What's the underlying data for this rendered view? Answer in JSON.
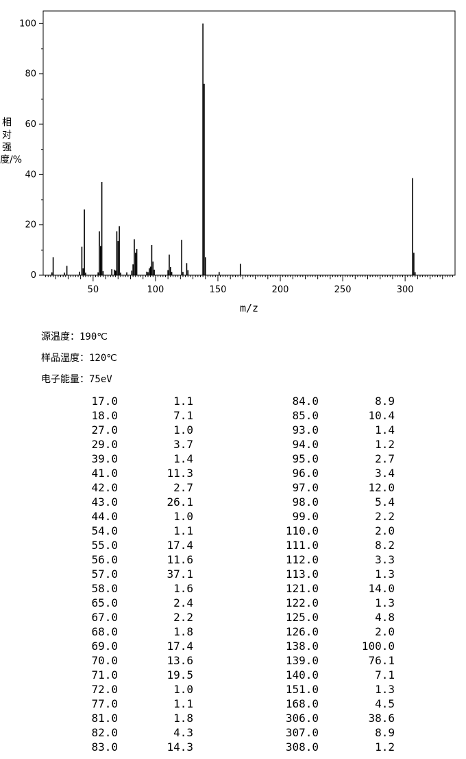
{
  "chart_data": {
    "type": "bar",
    "xlabel": "m/z",
    "ylabel": "相对强度/%",
    "xlim": [
      10,
      340
    ],
    "ylim": [
      0,
      105
    ],
    "xticks": [
      50,
      100,
      150,
      200,
      250,
      300
    ],
    "yticks": [
      0,
      20,
      40,
      60,
      80,
      100
    ],
    "peaks": [
      {
        "x": 17.0,
        "y": 1.1
      },
      {
        "x": 18.0,
        "y": 7.1
      },
      {
        "x": 27.0,
        "y": 1.0
      },
      {
        "x": 29.0,
        "y": 3.7
      },
      {
        "x": 39.0,
        "y": 1.4
      },
      {
        "x": 41.0,
        "y": 11.3
      },
      {
        "x": 42.0,
        "y": 2.7
      },
      {
        "x": 43.0,
        "y": 26.1
      },
      {
        "x": 44.0,
        "y": 1.0
      },
      {
        "x": 54.0,
        "y": 1.1
      },
      {
        "x": 55.0,
        "y": 17.4
      },
      {
        "x": 56.0,
        "y": 11.6
      },
      {
        "x": 57.0,
        "y": 37.1
      },
      {
        "x": 58.0,
        "y": 1.6
      },
      {
        "x": 65.0,
        "y": 2.4
      },
      {
        "x": 67.0,
        "y": 2.2
      },
      {
        "x": 68.0,
        "y": 1.8
      },
      {
        "x": 69.0,
        "y": 17.4
      },
      {
        "x": 70.0,
        "y": 13.6
      },
      {
        "x": 71.0,
        "y": 19.5
      },
      {
        "x": 72.0,
        "y": 1.0
      },
      {
        "x": 77.0,
        "y": 1.1
      },
      {
        "x": 81.0,
        "y": 1.8
      },
      {
        "x": 82.0,
        "y": 4.3
      },
      {
        "x": 83.0,
        "y": 14.3
      },
      {
        "x": 84.0,
        "y": 8.9
      },
      {
        "x": 85.0,
        "y": 10.4
      },
      {
        "x": 93.0,
        "y": 1.4
      },
      {
        "x": 94.0,
        "y": 1.2
      },
      {
        "x": 95.0,
        "y": 2.7
      },
      {
        "x": 96.0,
        "y": 3.4
      },
      {
        "x": 97.0,
        "y": 12.0
      },
      {
        "x": 98.0,
        "y": 5.4
      },
      {
        "x": 99.0,
        "y": 2.2
      },
      {
        "x": 110.0,
        "y": 2.0
      },
      {
        "x": 111.0,
        "y": 8.2
      },
      {
        "x": 112.0,
        "y": 3.3
      },
      {
        "x": 113.0,
        "y": 1.3
      },
      {
        "x": 121.0,
        "y": 14.0
      },
      {
        "x": 122.0,
        "y": 1.3
      },
      {
        "x": 125.0,
        "y": 4.8
      },
      {
        "x": 126.0,
        "y": 2.0
      },
      {
        "x": 138.0,
        "y": 100.0
      },
      {
        "x": 139.0,
        "y": 76.1
      },
      {
        "x": 140.0,
        "y": 7.1
      },
      {
        "x": 151.0,
        "y": 1.3
      },
      {
        "x": 168.0,
        "y": 4.5
      },
      {
        "x": 306.0,
        "y": 38.6
      },
      {
        "x": 307.0,
        "y": 8.9
      },
      {
        "x": 308.0,
        "y": 1.2
      }
    ]
  },
  "conditions": [
    {
      "label": "源温度：",
      "value": "190℃"
    },
    {
      "label": "样品温度：",
      "value": "120℃"
    },
    {
      "label": "电子能量：",
      "value": "75eV"
    }
  ],
  "table": {
    "left": [
      [
        "17.0",
        "1.1"
      ],
      [
        "18.0",
        "7.1"
      ],
      [
        "27.0",
        "1.0"
      ],
      [
        "29.0",
        "3.7"
      ],
      [
        "39.0",
        "1.4"
      ],
      [
        "41.0",
        "11.3"
      ],
      [
        "42.0",
        "2.7"
      ],
      [
        "43.0",
        "26.1"
      ],
      [
        "44.0",
        "1.0"
      ],
      [
        "54.0",
        "1.1"
      ],
      [
        "55.0",
        "17.4"
      ],
      [
        "56.0",
        "11.6"
      ],
      [
        "57.0",
        "37.1"
      ],
      [
        "58.0",
        "1.6"
      ],
      [
        "65.0",
        "2.4"
      ],
      [
        "67.0",
        "2.2"
      ],
      [
        "68.0",
        "1.8"
      ],
      [
        "69.0",
        "17.4"
      ],
      [
        "70.0",
        "13.6"
      ],
      [
        "71.0",
        "19.5"
      ],
      [
        "72.0",
        "1.0"
      ],
      [
        "77.0",
        "1.1"
      ],
      [
        "81.0",
        "1.8"
      ],
      [
        "82.0",
        "4.3"
      ],
      [
        "83.0",
        "14.3"
      ]
    ],
    "right": [
      [
        "84.0",
        "8.9"
      ],
      [
        "85.0",
        "10.4"
      ],
      [
        "93.0",
        "1.4"
      ],
      [
        "94.0",
        "1.2"
      ],
      [
        "95.0",
        "2.7"
      ],
      [
        "96.0",
        "3.4"
      ],
      [
        "97.0",
        "12.0"
      ],
      [
        "98.0",
        "5.4"
      ],
      [
        "99.0",
        "2.2"
      ],
      [
        "110.0",
        "2.0"
      ],
      [
        "111.0",
        "8.2"
      ],
      [
        "112.0",
        "3.3"
      ],
      [
        "113.0",
        "1.3"
      ],
      [
        "121.0",
        "14.0"
      ],
      [
        "122.0",
        "1.3"
      ],
      [
        "125.0",
        "4.8"
      ],
      [
        "126.0",
        "2.0"
      ],
      [
        "138.0",
        "100.0"
      ],
      [
        "139.0",
        "76.1"
      ],
      [
        "140.0",
        "7.1"
      ],
      [
        "151.0",
        "1.3"
      ],
      [
        "168.0",
        "4.5"
      ],
      [
        "306.0",
        "38.6"
      ],
      [
        "307.0",
        "8.9"
      ],
      [
        "308.0",
        "1.2"
      ]
    ]
  }
}
